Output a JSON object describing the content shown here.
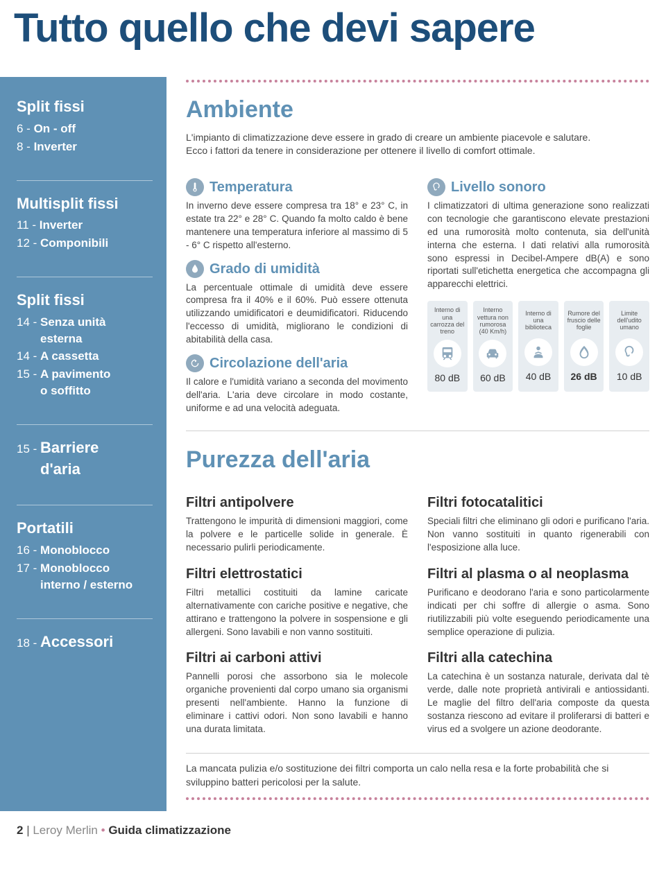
{
  "colors": {
    "title": "#1d4e7a",
    "sidebar_bg": "#5f91b5",
    "sidebar_fg": "#ffffff",
    "accent": "#5f91b5",
    "dotted": "#c7829c",
    "icon_bg": "#8fa9bd",
    "sound_card_bg": "#e8edf1",
    "text": "#444",
    "text_bold": "#333"
  },
  "title": "Tutto quello che devi sapere",
  "sidebar": {
    "g1": {
      "heading": "Split fissi",
      "i1": {
        "num": "6 - ",
        "lbl": "On - off"
      },
      "i2": {
        "num": "8 - ",
        "lbl": "Inverter"
      }
    },
    "g2": {
      "heading": "Multisplit fissi",
      "i1": {
        "num": "11 - ",
        "lbl": "Inverter"
      },
      "i2": {
        "num": "12 - ",
        "lbl": "Componibili"
      }
    },
    "g3": {
      "heading": "Split fissi",
      "i1": {
        "num": "14 - ",
        "lbl": "Senza unità",
        "sub": "esterna"
      },
      "i2": {
        "num": "14 - ",
        "lbl": "A cassetta"
      },
      "i3": {
        "num": "15 - ",
        "lbl": "A pavimento",
        "sub": "o soffitto"
      }
    },
    "g4": {
      "i1": {
        "num": "15 - ",
        "lbl": "Barriere",
        "sub": "d'aria"
      }
    },
    "g5": {
      "heading": "Portatili",
      "i1": {
        "num": "16 - ",
        "lbl": "Monoblocco"
      },
      "i2": {
        "num": "17 - ",
        "lbl": "Monoblocco",
        "sub": "interno / esterno"
      }
    },
    "g6": {
      "i1": {
        "num": "18 - ",
        "lbl": "Accessori"
      }
    }
  },
  "ambiente": {
    "title": "Ambiente",
    "lead1": "L'impianto di climatizzazione deve essere in grado di creare un ambiente piacevole e salutare.",
    "lead2": "Ecco i fattori da tenere in considerazione per ottenere il livello di comfort ottimale.",
    "temp": {
      "h": "Temperatura",
      "p": "In inverno deve essere compresa tra 18° e 23° C, in estate tra 22° e 28° C. Quando fa molto caldo è bene mantenere una temperatura inferiore al massimo di 5 - 6° C rispetto all'esterno."
    },
    "umidita": {
      "h": "Grado di umidità",
      "p": "La percentuale ottimale di umidità deve essere compresa fra il 40% e il 60%. Può essere ottenuta utilizzando umidificatori e deumidificatori. Riducendo l'eccesso di umidità, migliorano le condizioni di abitabilità della casa."
    },
    "aria": {
      "h": "Circolazione dell'aria",
      "p": "Il calore e l'umidità variano a seconda del movimento dell'aria. L'aria deve circolare in modo costante, uniforme e ad una velocità adeguata."
    },
    "sonoro": {
      "h": "Livello sonoro",
      "p": "I climatizzatori di ultima generazione sono realizzati con tecnologie che garantiscono elevate prestazioni ed una rumorosità molto contenuta, sia dell'unità interna che esterna. I dati relativi alla rumorosità sono espressi in Decibel-Ampere dB(A) e sono riportati sull'etichetta energetica che accompagna gli apparecchi elettrici."
    },
    "sound_cards": [
      {
        "label": "Interno di una carrozza del treno",
        "db": "80 dB",
        "icon": "train",
        "bold": false
      },
      {
        "label": "Interno vettura non rumorosa (40 Km/h)",
        "db": "60 dB",
        "icon": "car",
        "bold": false
      },
      {
        "label": "Interno di una biblioteca",
        "db": "40 dB",
        "icon": "reader",
        "bold": false
      },
      {
        "label": "Rumore del fruscio delle foglie",
        "db": "26 dB",
        "icon": "leaf",
        "bold": true
      },
      {
        "label": "Limite dell'udito umano",
        "db": "10 dB",
        "icon": "ear",
        "bold": false
      }
    ]
  },
  "purezza": {
    "title": "Purezza dell'aria",
    "left": {
      "f1": {
        "h": "Filtri antipolvere",
        "p": "Trattengono le impurità di dimensioni maggiori, come la polvere e le particelle solide in generale. È necessario pulirli periodicamente."
      },
      "f2": {
        "h": "Filtri elettrostatici",
        "p": "Filtri metallici costituiti da lamine caricate alternativamente con cariche positive e negative, che attirano e trattengono la polvere in sospensione e gli allergeni. Sono lavabili e non vanno sostituiti."
      },
      "f3": {
        "h": "Filtri ai carboni attivi",
        "p": "Pannelli porosi che assorbono sia le molecole organiche provenienti dal corpo umano sia organismi presenti nell'ambiente. Hanno la funzione di eliminare i cattivi odori. Non sono lavabili e hanno una durata limitata."
      }
    },
    "right": {
      "f1": {
        "h": "Filtri fotocatalitici",
        "p": "Speciali filtri che eliminano gli odori e purificano l'aria. Non vanno sostituiti in quanto rigenerabili con l'esposizione alla luce."
      },
      "f2": {
        "h": "Filtri al plasma o al neoplasma",
        "p": "Purificano e deodorano l'aria e sono particolarmente indicati per chi soffre di allergie o asma. Sono riutilizzabili più volte eseguendo periodicamente una semplice operazione di pulizia."
      },
      "f3": {
        "h": "Filtri alla catechina",
        "p": "La catechina è un sostanza naturale, derivata dal tè verde, dalle note proprietà antivirali e antiossidanti. Le maglie del filtro dell'aria composte da questa sostanza riescono ad evitare il proliferarsi di batteri e virus ed a svolgere un azione deodorante."
      }
    },
    "note": "La mancata pulizia e/o sostituzione dei filtri comporta un calo nella resa e la forte probabilità che si sviluppino batteri pericolosi per la salute."
  },
  "footer": {
    "page": "2",
    "brand": "Leroy Merlin",
    "guide": "Guida climatizzazione"
  }
}
